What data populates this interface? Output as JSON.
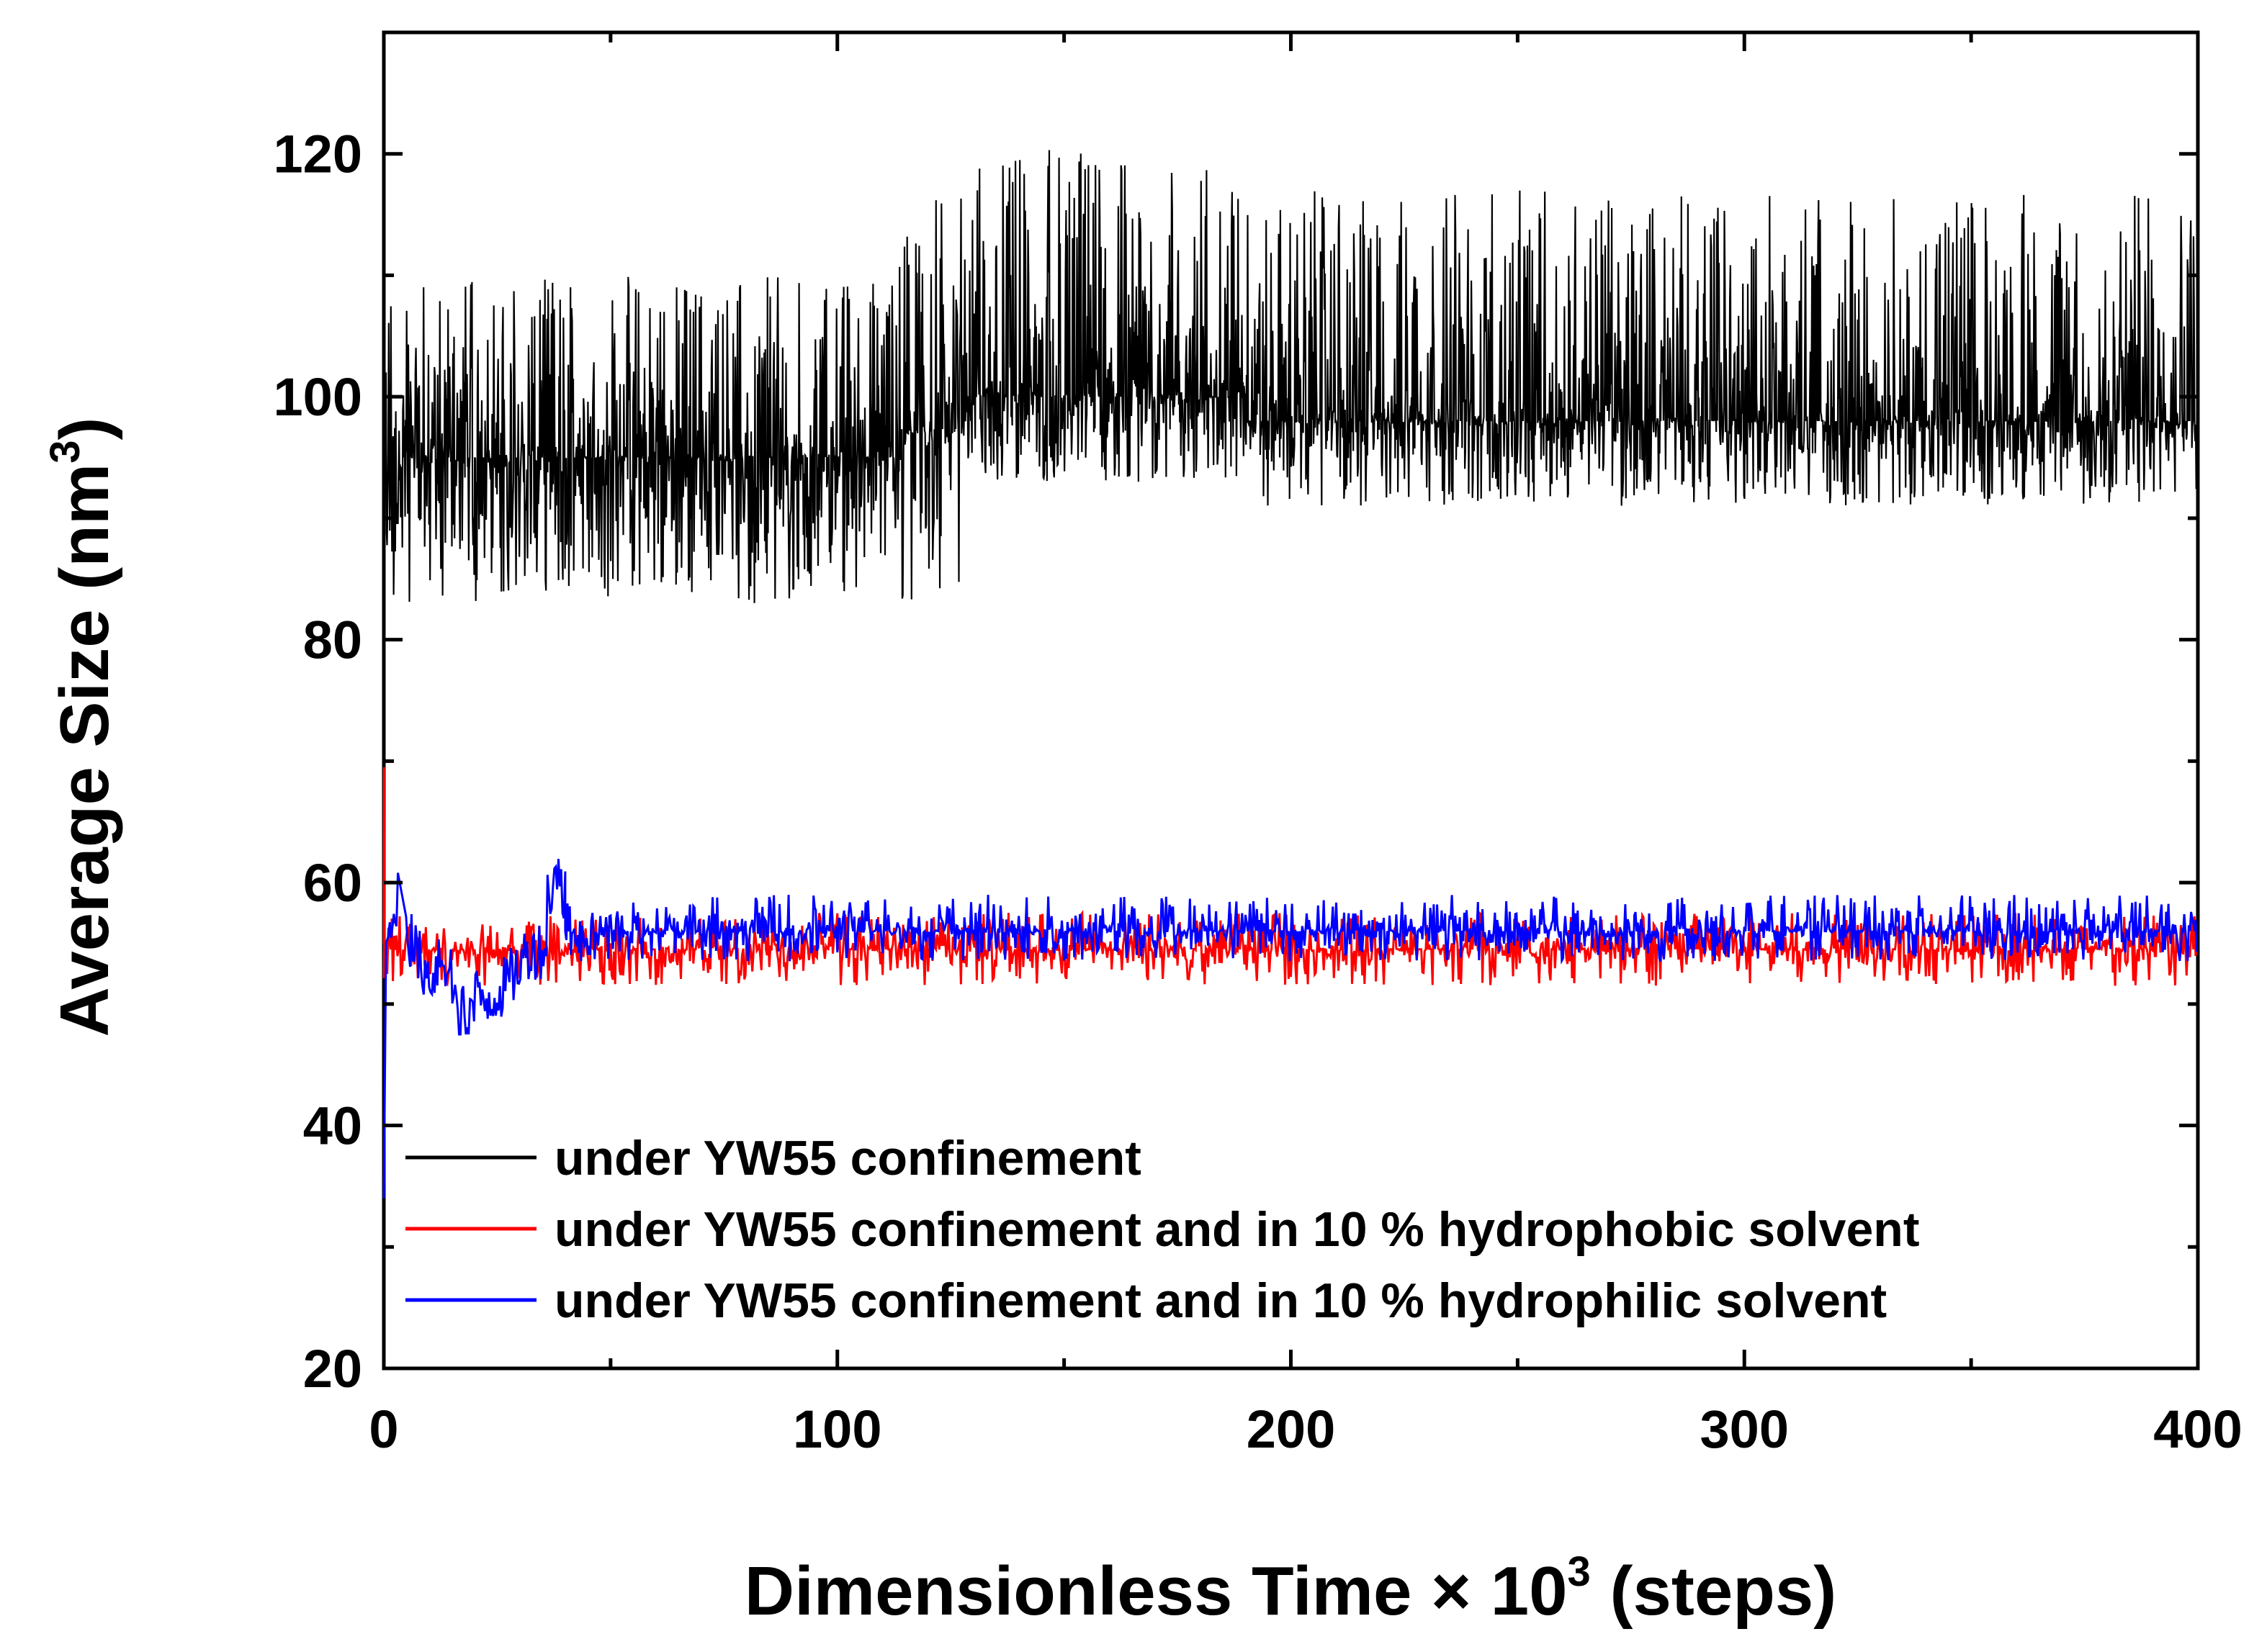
{
  "chart_data": {
    "type": "line",
    "xlabel": "Dimensionless Time × 10",
    "xlabel_superscript": "3",
    "xlabel_suffix": " (steps)",
    "ylabel": "Average Size (nm",
    "ylabel_superscript": "3",
    "ylabel_suffix": ")",
    "xlim": [
      0,
      400
    ],
    "ylim": [
      20,
      130
    ],
    "x_ticks": [
      0,
      100,
      200,
      300,
      400
    ],
    "y_ticks": [
      20,
      40,
      60,
      80,
      100,
      120
    ],
    "x_tick_labels": [
      "0",
      "100",
      "200",
      "300",
      "400"
    ],
    "y_tick_labels": [
      "20",
      "40",
      "60",
      "80",
      "100",
      "120"
    ],
    "grid": false,
    "legend_position": "bottom-left",
    "series": [
      {
        "name": "under YW55 confinement",
        "color": "#000000",
        "segments": [
          {
            "x_start": 0,
            "x_end": 113,
            "baseline": 95,
            "noise_low": 83,
            "noise_high": 110
          },
          {
            "x_start": 113,
            "x_end": 128,
            "baseline": 97,
            "noise_low": 83,
            "noise_high": 117
          },
          {
            "x_start": 128,
            "x_end": 190,
            "baseline": 100,
            "noise_low": 93,
            "noise_high": 121
          },
          {
            "x_start": 190,
            "x_end": 400,
            "baseline": 98,
            "noise_low": 91,
            "noise_high": 117
          }
        ]
      },
      {
        "name": "under YW55 confinement and in 10 % hydrophobic solvent",
        "color": "#ff0000",
        "initial_peak": 69.5,
        "segments": [
          {
            "x_start": 0,
            "x_end": 400,
            "baseline": 54.5,
            "noise_low": 51.5,
            "noise_high": 57.5
          }
        ]
      },
      {
        "name": "under YW55 confinement and in 10 % hydrophilic solvent",
        "color": "#0000ff",
        "initial_value": 34,
        "early_peak_x": 39,
        "early_peak_y": 62.5,
        "early_min_y": 47.5,
        "segments": [
          {
            "x_start": 0,
            "x_end": 40,
            "baseline": 53.5,
            "noise_low": 47.5,
            "noise_high": 62.5
          },
          {
            "x_start": 40,
            "x_end": 400,
            "baseline": 56,
            "noise_low": 53.5,
            "noise_high": 59
          }
        ]
      }
    ]
  }
}
